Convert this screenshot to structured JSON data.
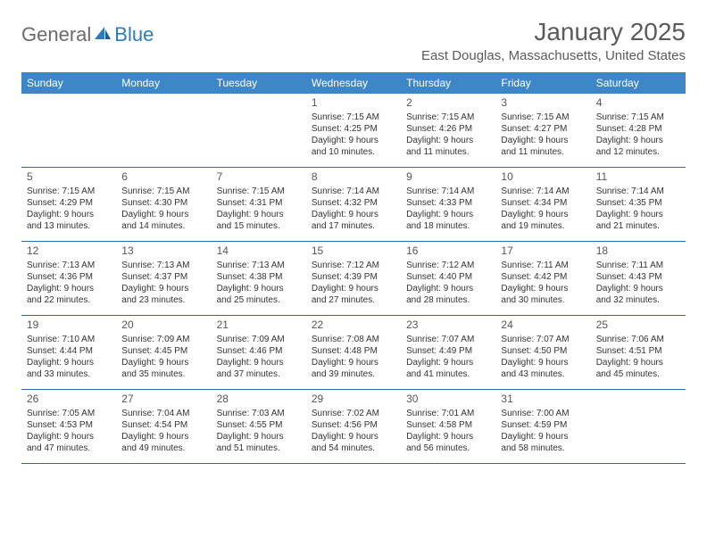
{
  "logo": {
    "general": "General",
    "blue": "Blue"
  },
  "title": "January 2025",
  "location": "East Douglas, Massachusetts, United States",
  "colors": {
    "header_bg": "#3d87c7",
    "header_text": "#ffffff",
    "week_border": "#2a6aa3",
    "logo_gray": "#6b6b6b",
    "logo_blue": "#2a7bbf",
    "title_color": "#5a5a5a",
    "text_color": "#333333",
    "background": "#ffffff"
  },
  "weekdays": [
    "Sunday",
    "Monday",
    "Tuesday",
    "Wednesday",
    "Thursday",
    "Friday",
    "Saturday"
  ],
  "weeks": [
    [
      null,
      null,
      null,
      {
        "n": "1",
        "sr": "7:15 AM",
        "ss": "4:25 PM",
        "dl": "9 hours and 10 minutes."
      },
      {
        "n": "2",
        "sr": "7:15 AM",
        "ss": "4:26 PM",
        "dl": "9 hours and 11 minutes."
      },
      {
        "n": "3",
        "sr": "7:15 AM",
        "ss": "4:27 PM",
        "dl": "9 hours and 11 minutes."
      },
      {
        "n": "4",
        "sr": "7:15 AM",
        "ss": "4:28 PM",
        "dl": "9 hours and 12 minutes."
      }
    ],
    [
      {
        "n": "5",
        "sr": "7:15 AM",
        "ss": "4:29 PM",
        "dl": "9 hours and 13 minutes."
      },
      {
        "n": "6",
        "sr": "7:15 AM",
        "ss": "4:30 PM",
        "dl": "9 hours and 14 minutes."
      },
      {
        "n": "7",
        "sr": "7:15 AM",
        "ss": "4:31 PM",
        "dl": "9 hours and 15 minutes."
      },
      {
        "n": "8",
        "sr": "7:14 AM",
        "ss": "4:32 PM",
        "dl": "9 hours and 17 minutes."
      },
      {
        "n": "9",
        "sr": "7:14 AM",
        "ss": "4:33 PM",
        "dl": "9 hours and 18 minutes."
      },
      {
        "n": "10",
        "sr": "7:14 AM",
        "ss": "4:34 PM",
        "dl": "9 hours and 19 minutes."
      },
      {
        "n": "11",
        "sr": "7:14 AM",
        "ss": "4:35 PM",
        "dl": "9 hours and 21 minutes."
      }
    ],
    [
      {
        "n": "12",
        "sr": "7:13 AM",
        "ss": "4:36 PM",
        "dl": "9 hours and 22 minutes."
      },
      {
        "n": "13",
        "sr": "7:13 AM",
        "ss": "4:37 PM",
        "dl": "9 hours and 23 minutes."
      },
      {
        "n": "14",
        "sr": "7:13 AM",
        "ss": "4:38 PM",
        "dl": "9 hours and 25 minutes."
      },
      {
        "n": "15",
        "sr": "7:12 AM",
        "ss": "4:39 PM",
        "dl": "9 hours and 27 minutes."
      },
      {
        "n": "16",
        "sr": "7:12 AM",
        "ss": "4:40 PM",
        "dl": "9 hours and 28 minutes."
      },
      {
        "n": "17",
        "sr": "7:11 AM",
        "ss": "4:42 PM",
        "dl": "9 hours and 30 minutes."
      },
      {
        "n": "18",
        "sr": "7:11 AM",
        "ss": "4:43 PM",
        "dl": "9 hours and 32 minutes."
      }
    ],
    [
      {
        "n": "19",
        "sr": "7:10 AM",
        "ss": "4:44 PM",
        "dl": "9 hours and 33 minutes."
      },
      {
        "n": "20",
        "sr": "7:09 AM",
        "ss": "4:45 PM",
        "dl": "9 hours and 35 minutes."
      },
      {
        "n": "21",
        "sr": "7:09 AM",
        "ss": "4:46 PM",
        "dl": "9 hours and 37 minutes."
      },
      {
        "n": "22",
        "sr": "7:08 AM",
        "ss": "4:48 PM",
        "dl": "9 hours and 39 minutes."
      },
      {
        "n": "23",
        "sr": "7:07 AM",
        "ss": "4:49 PM",
        "dl": "9 hours and 41 minutes."
      },
      {
        "n": "24",
        "sr": "7:07 AM",
        "ss": "4:50 PM",
        "dl": "9 hours and 43 minutes."
      },
      {
        "n": "25",
        "sr": "7:06 AM",
        "ss": "4:51 PM",
        "dl": "9 hours and 45 minutes."
      }
    ],
    [
      {
        "n": "26",
        "sr": "7:05 AM",
        "ss": "4:53 PM",
        "dl": "9 hours and 47 minutes."
      },
      {
        "n": "27",
        "sr": "7:04 AM",
        "ss": "4:54 PM",
        "dl": "9 hours and 49 minutes."
      },
      {
        "n": "28",
        "sr": "7:03 AM",
        "ss": "4:55 PM",
        "dl": "9 hours and 51 minutes."
      },
      {
        "n": "29",
        "sr": "7:02 AM",
        "ss": "4:56 PM",
        "dl": "9 hours and 54 minutes."
      },
      {
        "n": "30",
        "sr": "7:01 AM",
        "ss": "4:58 PM",
        "dl": "9 hours and 56 minutes."
      },
      {
        "n": "31",
        "sr": "7:00 AM",
        "ss": "4:59 PM",
        "dl": "9 hours and 58 minutes."
      },
      null
    ]
  ],
  "labels": {
    "sunrise": "Sunrise:",
    "sunset": "Sunset:",
    "daylight": "Daylight:"
  }
}
